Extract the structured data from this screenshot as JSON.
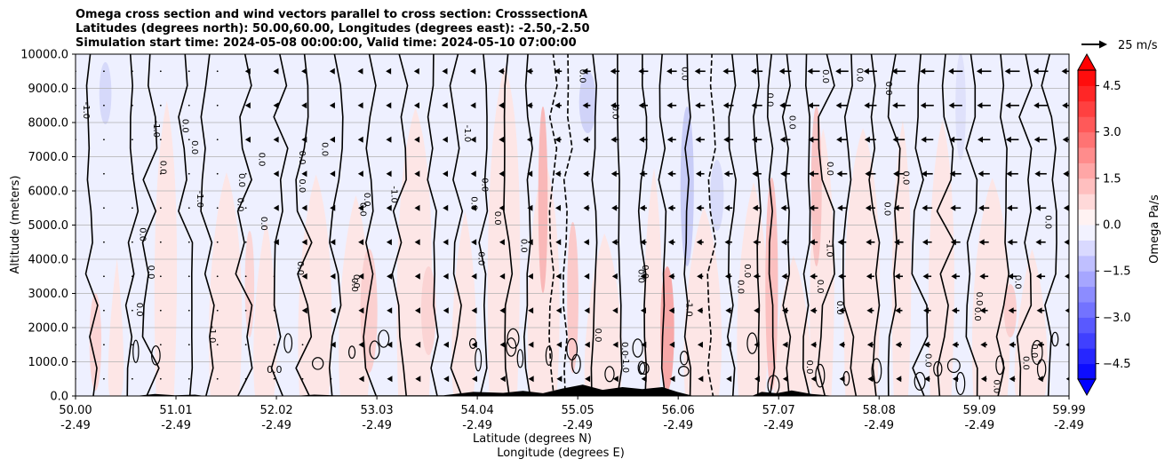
{
  "chart_data": {
    "type": "heatmap",
    "title_lines": [
      "Omega cross section and wind vectors parallel to cross section: CrosssectionA",
      "Latitudes (degrees north): 50.00,60.00, Longitudes (degrees east): -2.50,-2.50",
      "Simulation start time: 2024-05-08 00:00:00, Valid time: 2024-05-10 07:00:00"
    ],
    "ylabel": "Altitude (meters)",
    "xlabel_lat": "Latitude (degrees N)",
    "xlabel_lon": "Longitude (degrees E)",
    "ylim": [
      0,
      10000
    ],
    "yticks": [
      "0.0",
      "1000.0",
      "2000.0",
      "3000.0",
      "4000.0",
      "5000.0",
      "6000.0",
      "7000.0",
      "8000.0",
      "9000.0",
      "10000.0"
    ],
    "xlim": [
      50.0,
      59.99
    ],
    "xticks": [
      {
        "lat": "50.00",
        "lon": "-2.49"
      },
      {
        "lat": "51.01",
        "lon": "-2.49"
      },
      {
        "lat": "52.02",
        "lon": "-2.49"
      },
      {
        "lat": "53.03",
        "lon": "-2.49"
      },
      {
        "lat": "54.04",
        "lon": "-2.49"
      },
      {
        "lat": "55.05",
        "lon": "-2.49"
      },
      {
        "lat": "56.06",
        "lon": "-2.49"
      },
      {
        "lat": "57.07",
        "lon": "-2.49"
      },
      {
        "lat": "58.08",
        "lon": "-2.49"
      },
      {
        "lat": "59.09",
        "lon": "-2.49"
      },
      {
        "lat": "59.99",
        "lon": "-2.49"
      }
    ],
    "grid": "horizontal",
    "colorbar": {
      "label": "Omega Pa/s",
      "range": [
        -5.0,
        5.0
      ],
      "ticks": [
        "4.5",
        "3.0",
        "1.5",
        "0.0",
        "−1.5",
        "−3.0",
        "−4.5"
      ],
      "cmap": "bwr",
      "extend": "both"
    },
    "quiver_key": {
      "label": "25 m/s",
      "value": 25
    },
    "colors": {
      "positive": "#ff0000",
      "negative": "#0000ff",
      "terrain": "#000000",
      "grid": "#b0b0b0"
    },
    "contour_labels": [
      "0.0",
      "-1.0"
    ],
    "wind_speed_mps": [
      {
        "lat": 54.5,
        "speed": 8
      },
      {
        "lat": 55.5,
        "speed": 12
      },
      {
        "lat": 56.5,
        "speed": 14
      },
      {
        "lat": 57.5,
        "speed": 16
      },
      {
        "lat": 58.5,
        "speed": 18
      },
      {
        "lat": 59.5,
        "speed": 19
      }
    ]
  }
}
